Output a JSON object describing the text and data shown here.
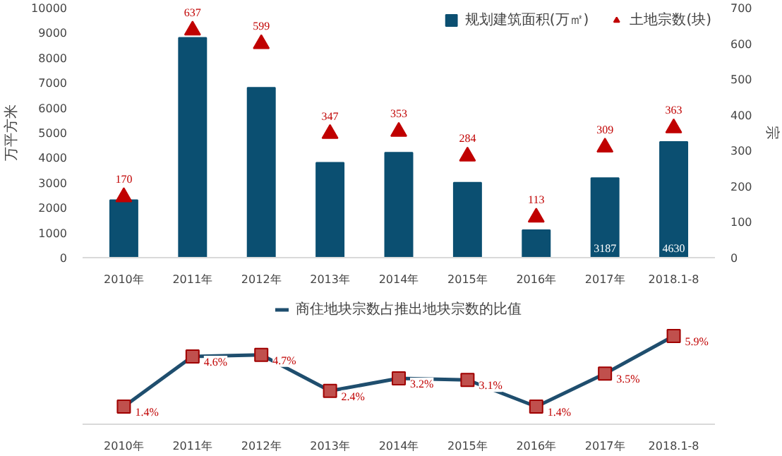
{
  "chart_data": [
    {
      "type": "bar",
      "categories": [
        "2010年",
        "2011年",
        "2012年",
        "2013年",
        "2014年",
        "2015年",
        "2016年",
        "2017年",
        "2018.1-8"
      ],
      "ylabel": "万平方米",
      "y2label": "宗",
      "ylim": [
        0,
        10000
      ],
      "yticks": [
        0,
        1000,
        2000,
        3000,
        4000,
        5000,
        6000,
        7000,
        8000,
        9000,
        10000
      ],
      "y2lim": [
        0,
        700
      ],
      "y2ticks": [
        0,
        100,
        200,
        300,
        400,
        500,
        600,
        700
      ],
      "legend": "top right",
      "series": [
        {
          "name": "规划建筑面积(万㎡)",
          "type": "bar",
          "color": "#0b4f71",
          "values": [
            2300,
            8800,
            6800,
            3800,
            4200,
            3000,
            1100,
            3187,
            4630
          ],
          "value_labels": [
            null,
            null,
            null,
            null,
            null,
            null,
            null,
            "3187",
            "4630"
          ]
        },
        {
          "name": "土地宗数(块)",
          "type": "scatter",
          "axis": "y2",
          "marker": "triangle",
          "color": "#c00000",
          "data_labels": true,
          "values": [
            170,
            637,
            599,
            347,
            353,
            284,
            113,
            309,
            363
          ]
        }
      ]
    },
    {
      "type": "line",
      "categories": [
        "2010年",
        "2011年",
        "2012年",
        "2013年",
        "2014年",
        "2015年",
        "2016年",
        "2017年",
        "2018.1-8"
      ],
      "legend": "top",
      "series": [
        {
          "name": "商住地块宗数占推出地块宗数的比值",
          "color": "#1f4e6e",
          "marker": "square",
          "values": [
            1.4,
            4.6,
            4.7,
            2.4,
            3.2,
            3.1,
            1.4,
            3.5,
            5.9
          ],
          "value_labels": [
            "1.4%",
            "4.6%",
            "4.7%",
            "2.4%",
            "3.2%",
            "3.1%",
            "1.4%",
            "3.5%",
            "5.9%"
          ]
        }
      ]
    }
  ]
}
